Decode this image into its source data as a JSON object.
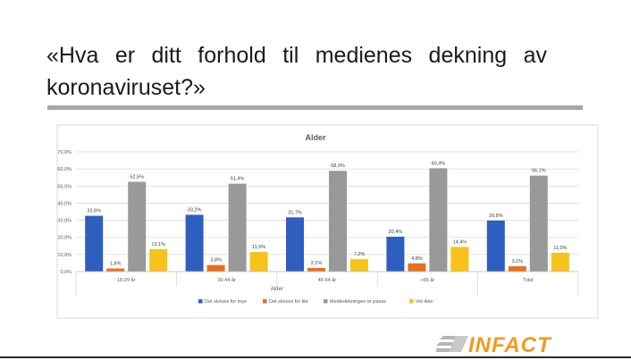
{
  "slide": {
    "title": "«Hva er ditt forhold til medienes dekning av koronaviruset?»"
  },
  "brand": {
    "logo_text": "INFACT",
    "logo_color": "#f39a1e"
  },
  "chart_data": {
    "type": "bar",
    "title": "Alder",
    "xlabel": "Alder",
    "ylabel": "",
    "ylim": [
      0,
      70
    ],
    "yticks": [
      "0,0%",
      "10,0%",
      "20,0%",
      "30,0%",
      "40,0%",
      "50,0%",
      "60,0%",
      "70,0%"
    ],
    "grid": true,
    "legend_position": "bottom",
    "categories": [
      "18-29 år",
      "30-44 år",
      "45-64 år",
      "+65 år",
      "Total"
    ],
    "series": [
      {
        "name": "Det skrives for mye",
        "color": "#2e5fbf",
        "values": [
          32.6,
          33.2,
          31.7,
          20.4,
          29.8
        ],
        "labels": [
          "32,6%",
          "33,2%",
          "31,7%",
          "20,4%",
          "29,8%"
        ]
      },
      {
        "name": "Det skrives for lite",
        "color": "#e8701c",
        "values": [
          1.8,
          3.8,
          2.1,
          4.8,
          3.1
        ],
        "labels": [
          "1,8%",
          "3,8%",
          "2,1%",
          "4,8%",
          "3,1%"
        ]
      },
      {
        "name": "Mediedekningen er passe",
        "color": "#999999",
        "values": [
          52.5,
          51.4,
          58.9,
          60.4,
          56.1
        ],
        "labels": [
          "52,5%",
          "51,4%",
          "58,9%",
          "60,4%",
          "56,1%"
        ]
      },
      {
        "name": "Vet ikke",
        "color": "#f7c21b",
        "values": [
          13.1,
          11.5,
          7.2,
          14.4,
          11.0
        ],
        "labels": [
          "13,1%",
          "11,5%",
          "7,2%",
          "14,4%",
          "11,0%"
        ]
      }
    ]
  }
}
